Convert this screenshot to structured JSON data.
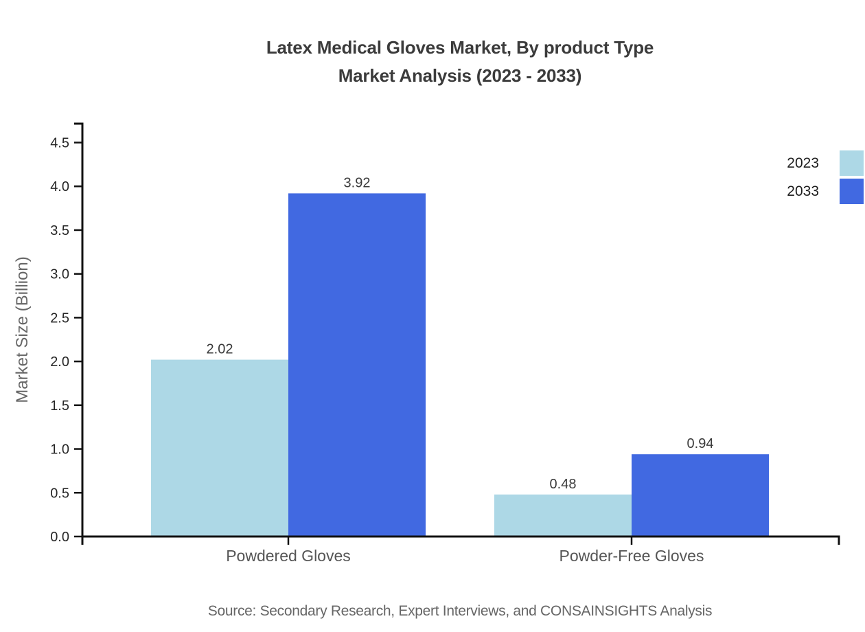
{
  "title": {
    "line1": "Latex Medical Gloves Market, By product Type",
    "line2": "Market Analysis (2023 - 2033)"
  },
  "source": "Source: Secondary Research, Expert Interviews, and CONSAINSIGHTS Analysis",
  "chart_data": {
    "type": "bar",
    "title": "Latex Medical Gloves Market, By product Type Market Analysis (2023 - 2033)",
    "categories": [
      "Powdered Gloves",
      "Powder-Free Gloves"
    ],
    "series": [
      {
        "name": "2023",
        "color": "#ADD8E6",
        "values": [
          2.02,
          0.48
        ]
      },
      {
        "name": "2033",
        "color": "#4169E1",
        "values": [
          3.92,
          0.94
        ]
      }
    ],
    "xlabel": "",
    "ylabel": "Market Size (Billion)",
    "ylim": [
      0,
      4.5
    ],
    "ytick_step": 0.5,
    "grid": false,
    "legend_position": "top-right",
    "value_labels": [
      2.02,
      3.92,
      0.48,
      0.94
    ],
    "axis_color": "#111111",
    "value_label_color": "#3a3a3a"
  }
}
